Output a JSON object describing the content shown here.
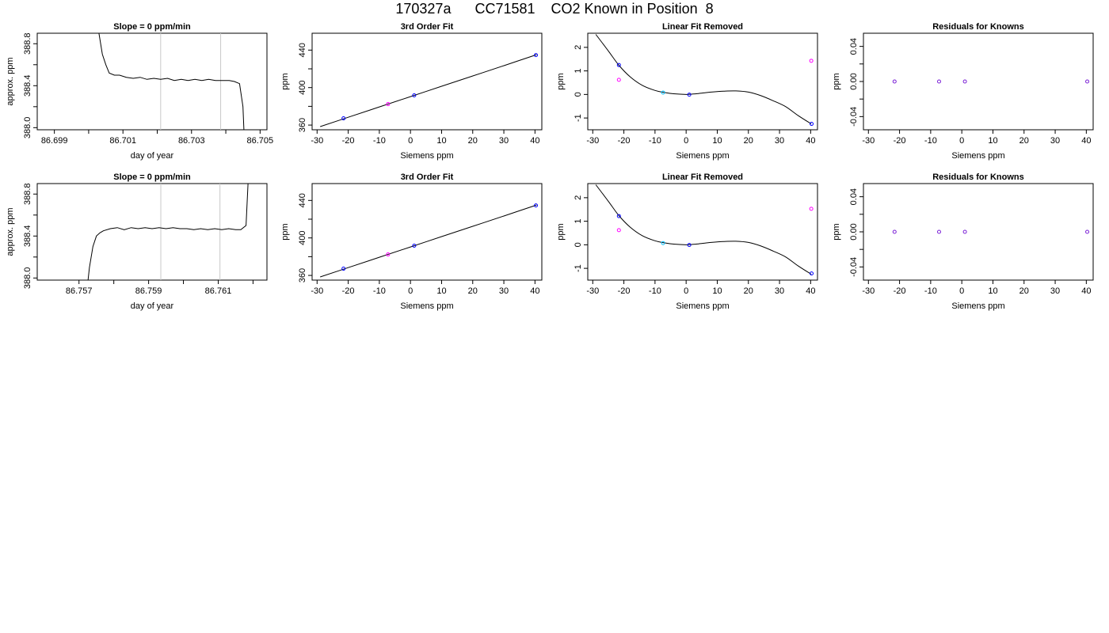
{
  "page": {
    "title": "170327a      CC71581    CO2 Known in Position  8"
  },
  "colors": {
    "axis": "#000000",
    "line": "#000000",
    "vline": "#c8c8c8",
    "point_blue": "#0000ff",
    "point_magenta": "#ff00ff",
    "point_cyan": "#00bfff",
    "point_purple": "#7a1fd6"
  },
  "chart_data": [
    {
      "type": "line",
      "title": "Slope =  0  ppm/min",
      "xlabel": "day of year",
      "ylabel": "approx. ppm",
      "xlim": [
        86.6985,
        86.7052
      ],
      "ylim": [
        387.98,
        388.9
      ],
      "xticks": [
        86.699,
        86.7,
        86.701,
        86.702,
        86.703,
        86.704,
        86.705
      ],
      "xtick_labels": [
        "86.699",
        "",
        "86.701",
        "",
        "86.703",
        "",
        "86.705"
      ],
      "yticks": [
        388.0,
        388.2,
        388.4,
        388.6,
        388.8
      ],
      "ytick_labels": [
        "388.0",
        "",
        "388.4",
        "",
        "388.8"
      ],
      "vlines": [
        86.7021,
        86.70385
      ],
      "series": [
        {
          "x": [
            86.7002,
            86.7003,
            86.7004,
            86.7005,
            86.7006,
            86.70075,
            86.7009,
            86.7011,
            86.7013,
            86.7015,
            86.7017,
            86.7019,
            86.7021,
            86.7023,
            86.7025,
            86.7027,
            86.7029,
            86.7031,
            86.7033,
            86.7035,
            86.7037,
            86.7039,
            86.7041,
            86.70425,
            86.7044,
            86.7045,
            86.70455
          ],
          "y": [
            389.2,
            388.9,
            388.7,
            388.6,
            388.52,
            388.5,
            388.5,
            388.48,
            388.47,
            388.48,
            388.46,
            388.47,
            388.46,
            388.47,
            388.45,
            388.46,
            388.45,
            388.46,
            388.45,
            388.46,
            388.45,
            388.45,
            388.45,
            388.44,
            388.42,
            388.2,
            387.8
          ]
        }
      ]
    },
    {
      "type": "scatter",
      "title": "3rd Order Fit",
      "xlabel": "Siemens ppm",
      "ylabel": "ppm",
      "xlim": [
        -31.6,
        42.2
      ],
      "ylim": [
        355,
        458
      ],
      "xticks": [
        -30,
        -20,
        -10,
        0,
        10,
        20,
        30,
        40
      ],
      "xtick_labels": [
        "-30",
        "-20",
        "-10",
        "0",
        "10",
        "20",
        "30",
        "40"
      ],
      "yticks": [
        360,
        380,
        400,
        420,
        440
      ],
      "ytick_labels": [
        "360",
        "",
        "400",
        "",
        "440"
      ],
      "fit_curve": {
        "x": [
          -29,
          -20,
          -10,
          0,
          10,
          20,
          30,
          40.5
        ],
        "y": [
          358.4,
          368.3,
          379.4,
          390.4,
          401.4,
          412.4,
          423.4,
          435.1
        ]
      },
      "points": [
        {
          "x": -21.5,
          "y": 367.2,
          "color": "point_blue"
        },
        {
          "x": -7.2,
          "y": 382.4,
          "color": "point_magenta"
        },
        {
          "x": 1.2,
          "y": 391.7,
          "color": "point_blue"
        },
        {
          "x": 40.3,
          "y": 434.7,
          "color": "point_blue"
        }
      ]
    },
    {
      "type": "scatter",
      "title": "Linear Fit Removed",
      "xlabel": "Siemens ppm",
      "ylabel": "ppm",
      "xlim": [
        -31.6,
        42.2
      ],
      "ylim": [
        -1.5,
        2.6
      ],
      "xticks": [
        -30,
        -20,
        -10,
        0,
        10,
        20,
        30,
        40
      ],
      "xtick_labels": [
        "-30",
        "-20",
        "-10",
        "0",
        "10",
        "20",
        "30",
        "40"
      ],
      "yticks": [
        -1,
        0,
        1,
        2
      ],
      "ytick_labels": [
        "-1",
        "0",
        "1",
        "2"
      ],
      "fit_curve": {
        "x": [
          -29,
          -25,
          -21.6,
          -18,
          -14,
          -10,
          -7.2,
          -4,
          0,
          1.1,
          4,
          8,
          12,
          16,
          20,
          24,
          28,
          32,
          36,
          40.2
        ],
        "y": [
          2.55,
          1.85,
          1.24,
          0.75,
          0.38,
          0.17,
          0.09,
          0.03,
          0.0,
          0.01,
          0.04,
          0.1,
          0.14,
          0.15,
          0.1,
          -0.05,
          -0.27,
          -0.52,
          -0.9,
          -1.25
        ]
      },
      "points": [
        {
          "x": -21.6,
          "y": 1.25,
          "color": "point_blue"
        },
        {
          "x": -21.6,
          "y": 0.62,
          "color": "point_magenta"
        },
        {
          "x": -7.4,
          "y": 0.08,
          "color": "point_cyan"
        },
        {
          "x": 1.0,
          "y": -0.01,
          "color": "point_blue"
        },
        {
          "x": 40.2,
          "y": 1.43,
          "color": "point_magenta"
        },
        {
          "x": 40.3,
          "y": -1.25,
          "color": "point_blue"
        }
      ]
    },
    {
      "type": "scatter",
      "title": "Residuals for Knowns",
      "xlabel": "Siemens ppm",
      "ylabel": "ppm",
      "xlim": [
        -31.6,
        42.2
      ],
      "ylim": [
        -0.055,
        0.055
      ],
      "xticks": [
        -30,
        -20,
        -10,
        0,
        10,
        20,
        30,
        40
      ],
      "xtick_labels": [
        "-30",
        "-20",
        "-10",
        "0",
        "10",
        "20",
        "30",
        "40"
      ],
      "yticks": [
        -0.04,
        -0.02,
        0,
        0.02,
        0.04
      ],
      "ytick_labels": [
        "-0.04",
        "",
        "0.00",
        "",
        "0.04"
      ],
      "points": [
        {
          "x": -21.6,
          "y": 0,
          "color": "point_purple"
        },
        {
          "x": -7.3,
          "y": 0,
          "color": "point_purple"
        },
        {
          "x": 1.0,
          "y": 0,
          "color": "point_purple"
        },
        {
          "x": 40.3,
          "y": 0,
          "color": "point_purple"
        }
      ]
    },
    {
      "type": "line",
      "title": "Slope =  0  ppm/min",
      "xlabel": "day of year",
      "ylabel": "approx. ppm",
      "xlim": [
        86.7558,
        86.7624
      ],
      "ylim": [
        387.98,
        388.9
      ],
      "xticks": [
        86.757,
        86.758,
        86.759,
        86.76,
        86.761,
        86.762
      ],
      "xtick_labels": [
        "86.757",
        "",
        "86.759",
        "",
        "86.761",
        ""
      ],
      "yticks": [
        388.0,
        388.2,
        388.4,
        388.6,
        388.8
      ],
      "ytick_labels": [
        "388.0",
        "",
        "388.4",
        "",
        "388.8"
      ],
      "vlines": [
        86.75935,
        86.76105
      ],
      "series": [
        {
          "x": [
            86.7572,
            86.7573,
            86.7574,
            86.7575,
            86.7576,
            86.7577,
            86.7579,
            86.7581,
            86.7583,
            86.7585,
            86.7587,
            86.7589,
            86.7591,
            86.7593,
            86.7595,
            86.7597,
            86.7599,
            86.7601,
            86.7603,
            86.7605,
            86.7607,
            86.7609,
            86.7611,
            86.7613,
            86.7615,
            86.76165,
            86.7618,
            86.7619
          ],
          "y": [
            387.8,
            388.1,
            388.3,
            388.4,
            388.43,
            388.45,
            388.47,
            388.48,
            388.46,
            388.48,
            388.47,
            388.48,
            388.47,
            388.48,
            388.47,
            388.48,
            388.47,
            388.47,
            388.46,
            388.47,
            388.46,
            388.47,
            388.46,
            388.47,
            388.46,
            388.46,
            388.5,
            389.2
          ]
        }
      ]
    },
    {
      "type": "scatter",
      "title": "3rd Order Fit",
      "xlabel": "Siemens ppm",
      "ylabel": "ppm",
      "xlim": [
        -31.6,
        42.2
      ],
      "ylim": [
        355,
        458
      ],
      "xticks": [
        -30,
        -20,
        -10,
        0,
        10,
        20,
        30,
        40
      ],
      "xtick_labels": [
        "-30",
        "-20",
        "-10",
        "0",
        "10",
        "20",
        "30",
        "40"
      ],
      "yticks": [
        360,
        380,
        400,
        420,
        440
      ],
      "ytick_labels": [
        "360",
        "",
        "400",
        "",
        "440"
      ],
      "fit_curve": {
        "x": [
          -29,
          -20,
          -10,
          0,
          10,
          20,
          30,
          40.5
        ],
        "y": [
          358.4,
          368.3,
          379.4,
          390.4,
          401.4,
          412.4,
          423.4,
          435.1
        ]
      },
      "points": [
        {
          "x": -21.5,
          "y": 367.2,
          "color": "point_blue"
        },
        {
          "x": -7.2,
          "y": 382.4,
          "color": "point_magenta"
        },
        {
          "x": 1.2,
          "y": 391.7,
          "color": "point_blue"
        },
        {
          "x": 40.3,
          "y": 434.7,
          "color": "point_blue"
        }
      ]
    },
    {
      "type": "scatter",
      "title": "Linear Fit Removed",
      "xlabel": "Siemens ppm",
      "ylabel": "ppm",
      "xlim": [
        -31.6,
        42.2
      ],
      "ylim": [
        -1.5,
        2.6
      ],
      "xticks": [
        -30,
        -20,
        -10,
        0,
        10,
        20,
        30,
        40
      ],
      "xtick_labels": [
        "-30",
        "-20",
        "-10",
        "0",
        "10",
        "20",
        "30",
        "40"
      ],
      "yticks": [
        -1,
        0,
        1,
        2
      ],
      "ytick_labels": [
        "-1",
        "0",
        "1",
        "2"
      ],
      "fit_curve": {
        "x": [
          -29,
          -25,
          -21.6,
          -18,
          -14,
          -10,
          -7.2,
          -4,
          0,
          1.1,
          4,
          8,
          12,
          16,
          20,
          24,
          28,
          32,
          36,
          40.2
        ],
        "y": [
          2.55,
          1.85,
          1.24,
          0.75,
          0.38,
          0.17,
          0.09,
          0.03,
          0.0,
          0.01,
          0.04,
          0.1,
          0.14,
          0.15,
          0.1,
          -0.05,
          -0.27,
          -0.52,
          -0.9,
          -1.25
        ]
      },
      "points": [
        {
          "x": -21.6,
          "y": 1.22,
          "color": "point_blue"
        },
        {
          "x": -21.6,
          "y": 0.62,
          "color": "point_magenta"
        },
        {
          "x": -7.4,
          "y": 0.07,
          "color": "point_cyan"
        },
        {
          "x": 1.0,
          "y": -0.01,
          "color": "point_blue"
        },
        {
          "x": 40.2,
          "y": 1.53,
          "color": "point_magenta"
        },
        {
          "x": 40.3,
          "y": -1.22,
          "color": "point_blue"
        }
      ]
    },
    {
      "type": "scatter",
      "title": "Residuals for Knowns",
      "xlabel": "Siemens ppm",
      "ylabel": "ppm",
      "xlim": [
        -31.6,
        42.2
      ],
      "ylim": [
        -0.055,
        0.055
      ],
      "xticks": [
        -30,
        -20,
        -10,
        0,
        10,
        20,
        30,
        40
      ],
      "xtick_labels": [
        "-30",
        "-20",
        "-10",
        "0",
        "10",
        "20",
        "30",
        "40"
      ],
      "yticks": [
        -0.04,
        -0.02,
        0,
        0.02,
        0.04
      ],
      "ytick_labels": [
        "-0.04",
        "",
        "0.00",
        "",
        "0.04"
      ],
      "points": [
        {
          "x": -21.6,
          "y": 0,
          "color": "point_purple"
        },
        {
          "x": -7.3,
          "y": 0,
          "color": "point_purple"
        },
        {
          "x": 1.0,
          "y": 0,
          "color": "point_purple"
        },
        {
          "x": 40.3,
          "y": 0,
          "color": "point_purple"
        }
      ]
    }
  ]
}
